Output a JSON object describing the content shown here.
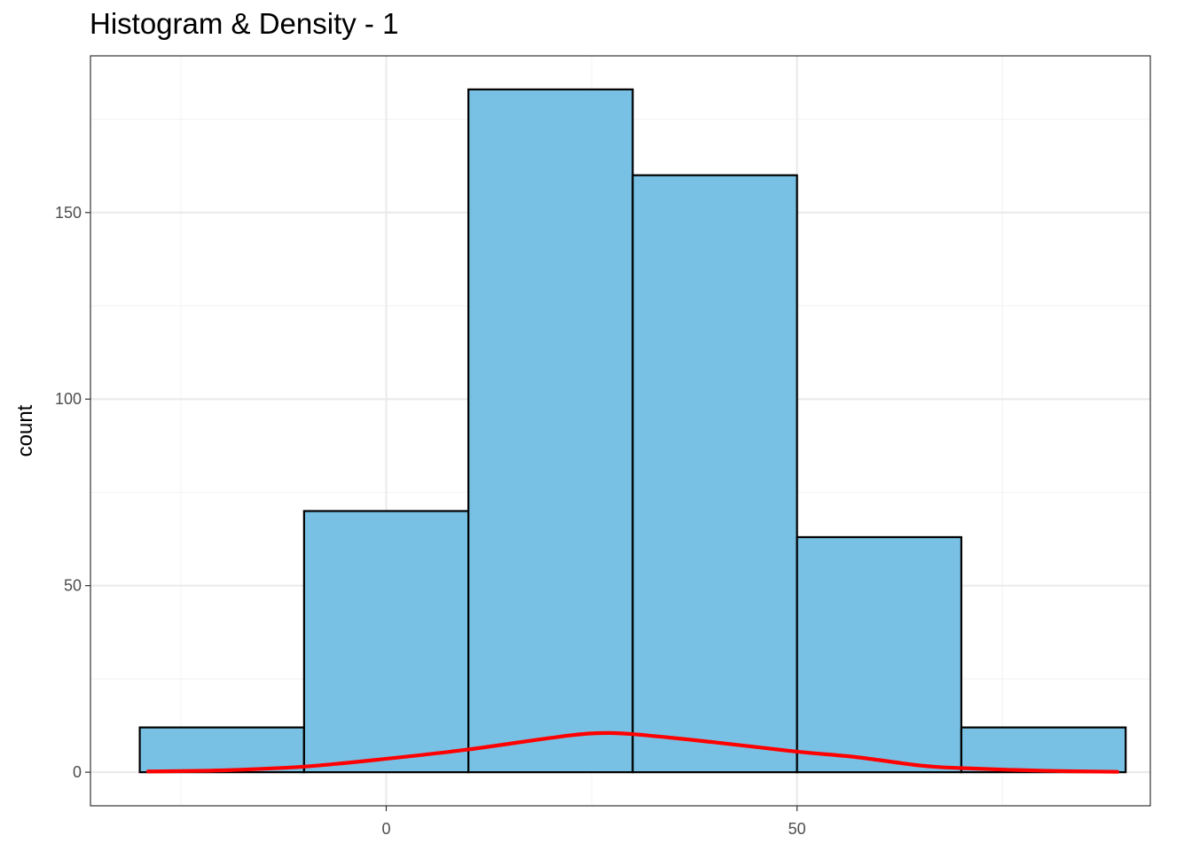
{
  "chart_data": {
    "type": "bar",
    "title": "Histogram & Density - 1",
    "xlabel": "",
    "ylabel": "count",
    "bins": [
      {
        "x0": -30,
        "x1": -10,
        "count": 12
      },
      {
        "x0": -10,
        "x1": 10,
        "count": 70
      },
      {
        "x0": 10,
        "x1": 30,
        "count": 183
      },
      {
        "x0": 30,
        "x1": 50,
        "count": 160
      },
      {
        "x0": 50,
        "x1": 70,
        "count": 63
      },
      {
        "x0": 70,
        "x1": 90,
        "count": 12
      }
    ],
    "density_curve": {
      "name": "",
      "x": [
        -29,
        -20,
        -10,
        0,
        10,
        20,
        25,
        30,
        40,
        50,
        57,
        65,
        70,
        80,
        89
      ],
      "y": [
        0.2,
        0.5,
        1.5,
        3.6,
        6.1,
        9.2,
        10.4,
        10.2,
        8.0,
        5.5,
        4.1,
        1.8,
        1.1,
        0.4,
        0.1
      ]
    },
    "xlim": [
      -36,
      93
    ],
    "ylim": [
      -9,
      192
    ],
    "x_ticks": [
      0,
      50
    ],
    "x_tick_labels": [
      "0",
      "50"
    ],
    "x_minor_ticks": [
      -25,
      25,
      75
    ],
    "y_ticks": [
      0,
      50,
      100,
      150
    ],
    "y_tick_labels": [
      "0",
      "50",
      "100",
      "150"
    ],
    "y_minor_ticks": [
      25,
      75,
      125,
      175
    ],
    "grid": true,
    "legend": "none",
    "colors": {
      "bar_fill": "#78c1e4",
      "bar_stroke": "#000000",
      "density_line": "#ff0000",
      "grid_major": "#ebebeb",
      "grid_minor": "#f4f4f4",
      "panel_border": "#333333"
    }
  }
}
